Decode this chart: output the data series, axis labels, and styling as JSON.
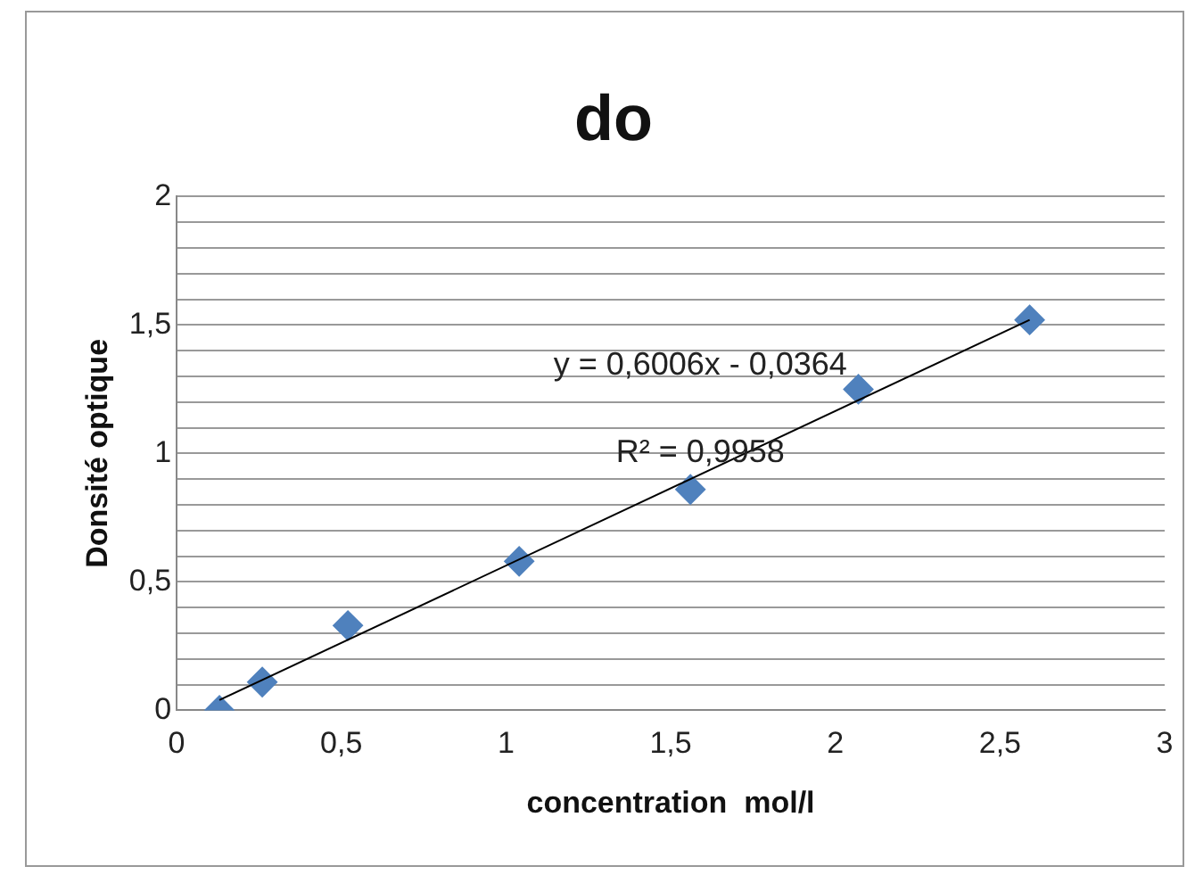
{
  "chart_data": {
    "type": "scatter",
    "title": "do",
    "xlabel": "concentration  mol/l",
    "ylabel": "Donsité optique",
    "xlim": [
      0,
      3
    ],
    "xticks": [
      0,
      {
        "value": 0.5,
        "label": "0,5"
      },
      1,
      {
        "value": 1.5,
        "label": "1,5"
      },
      2,
      {
        "value": 2.5,
        "label": "2,5"
      },
      3
    ],
    "ylim": [
      0,
      2
    ],
    "yticks": [
      0,
      {
        "value": 0.1,
        "label": null
      },
      {
        "value": 0.2,
        "label": null
      },
      {
        "value": 0.3,
        "label": null
      },
      {
        "value": 0.4,
        "label": null
      },
      {
        "value": 0.5,
        "label": "0,5"
      },
      {
        "value": 0.6,
        "label": null
      },
      {
        "value": 0.7,
        "label": null
      },
      {
        "value": 0.8,
        "label": null
      },
      {
        "value": 0.9,
        "label": null
      },
      1,
      {
        "value": 1.1,
        "label": null
      },
      {
        "value": 1.2,
        "label": null
      },
      {
        "value": 1.3,
        "label": null
      },
      {
        "value": 1.4,
        "label": null
      },
      {
        "value": 1.5,
        "label": "1,5"
      },
      {
        "value": 1.6,
        "label": null
      },
      {
        "value": 1.7,
        "label": null
      },
      {
        "value": 1.8,
        "label": null
      },
      {
        "value": 1.9,
        "label": null
      },
      2
    ],
    "grid": "y",
    "legend": false,
    "series": [
      {
        "type": "scatter",
        "marker": "diamond",
        "color": "#4f81bd",
        "x": [
          0.13,
          0.26,
          0.52,
          1.04,
          1.56,
          2.07,
          2.59
        ],
        "values": [
          0.0,
          0.11,
          0.33,
          0.58,
          0.86,
          1.25,
          1.52
        ]
      },
      {
        "type": "line",
        "color": "#000000",
        "x": [
          0.13,
          2.59
        ],
        "values": [
          0.04,
          1.52
        ]
      }
    ],
    "annotations": [
      "y = 0,6006x - 0,0364",
      "R² = 0,9958"
    ]
  }
}
